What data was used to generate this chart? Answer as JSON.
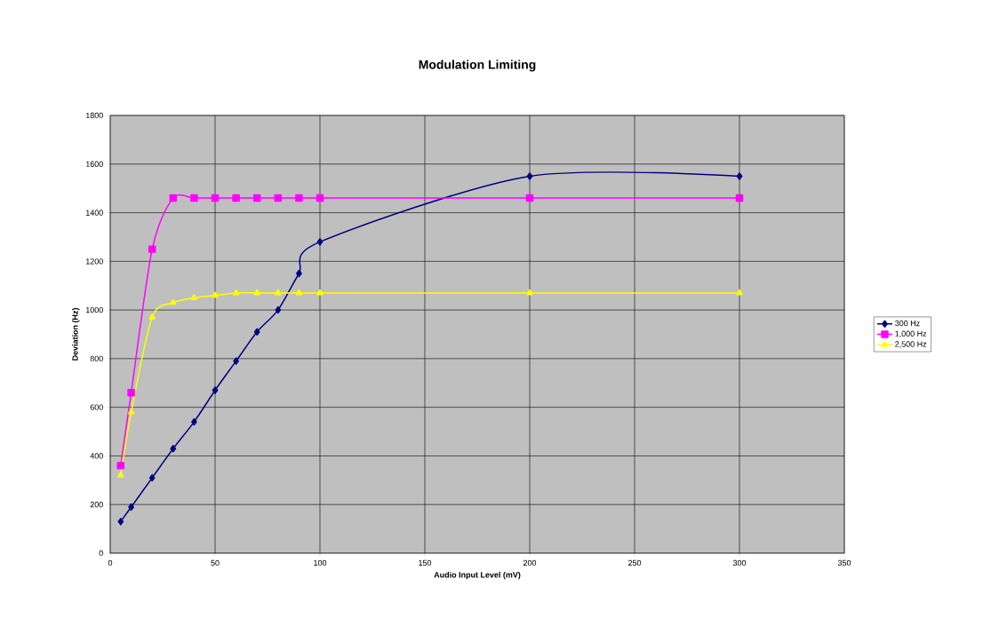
{
  "chart_data": {
    "type": "line",
    "title": "Modulation Limiting",
    "xlabel": "Audio Input Level (mV)",
    "ylabel": "Deviation (Hz)",
    "x": [
      5,
      10,
      20,
      30,
      40,
      50,
      60,
      70,
      80,
      90,
      100,
      200,
      300
    ],
    "series": [
      {
        "name": "300 Hz",
        "color": "#000080",
        "marker": "diamond",
        "values": [
          130,
          190,
          310,
          430,
          540,
          670,
          790,
          910,
          1000,
          1150,
          1280,
          1550,
          1550
        ]
      },
      {
        "name": "1,000 Hz",
        "color": "#ff00ff",
        "marker": "square",
        "values": [
          360,
          660,
          1250,
          1460,
          1460,
          1460,
          1460,
          1460,
          1460,
          1460,
          1460,
          1460,
          1460
        ]
      },
      {
        "name": "2,500 Hz",
        "color": "#ffff00",
        "marker": "triangle",
        "values": [
          320,
          580,
          970,
          1030,
          1050,
          1060,
          1070,
          1070,
          1070,
          1070,
          1070,
          1070,
          1070
        ]
      }
    ],
    "xlim": [
      0,
      350
    ],
    "xticks": [
      0,
      50,
      100,
      150,
      200,
      250,
      300,
      350
    ],
    "ylim": [
      0,
      1800
    ],
    "yticks": [
      0,
      200,
      400,
      600,
      800,
      1000,
      1200,
      1400,
      1600,
      1800
    ],
    "grid": true,
    "legend": "right",
    "line_style": "solid"
  }
}
